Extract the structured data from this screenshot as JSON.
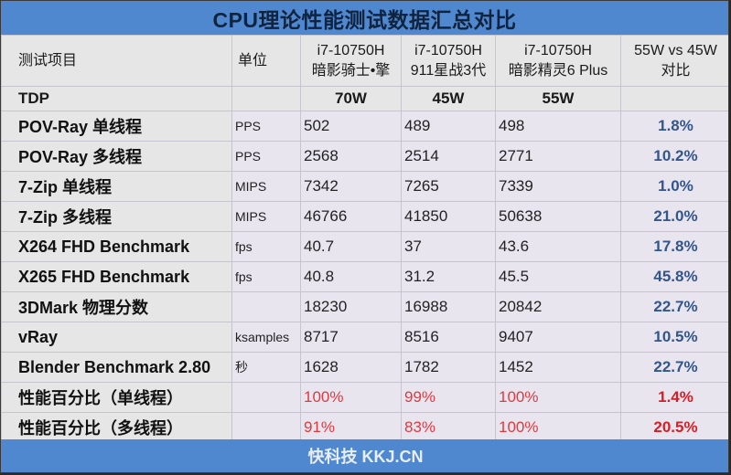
{
  "title": "CPU理论性能测试数据汇总对比",
  "header": {
    "item": "测试项目",
    "unit": "单位",
    "col1": [
      "i7-10750H",
      "暗影骑士•擎"
    ],
    "col2": [
      "i7-10750H",
      "911星战3代"
    ],
    "col3": [
      "i7-10750H",
      "暗影精灵6 Plus"
    ],
    "compare": [
      "55W vs 45W",
      "对比"
    ]
  },
  "tdp": {
    "label": "TDP",
    "values": [
      "70W",
      "45W",
      "55W"
    ]
  },
  "rows": [
    {
      "label": "POV-Ray 单线程",
      "unit": "PPS",
      "v": [
        "502",
        "489",
        "498"
      ],
      "cmp": "1.8%"
    },
    {
      "label": "POV-Ray 多线程",
      "unit": "PPS",
      "v": [
        "2568",
        "2514",
        "2771"
      ],
      "cmp": "10.2%"
    },
    {
      "label": "7-Zip 单线程",
      "unit": "MIPS",
      "v": [
        "7342",
        "7265",
        "7339"
      ],
      "cmp": "1.0%"
    },
    {
      "label": "7-Zip 多线程",
      "unit": "MIPS",
      "v": [
        "46766",
        "41850",
        "50638"
      ],
      "cmp": "21.0%"
    },
    {
      "label": "X264 FHD Benchmark",
      "unit": "fps",
      "v": [
        "40.7",
        "37",
        "43.6"
      ],
      "cmp": "17.8%"
    },
    {
      "label": "X265 FHD Benchmark",
      "unit": "fps",
      "v": [
        "40.8",
        "31.2",
        "45.5"
      ],
      "cmp": "45.8%"
    },
    {
      "label": "3DMark 物理分数",
      "unit": "",
      "v": [
        "18230",
        "16988",
        "20842"
      ],
      "cmp": "22.7%"
    },
    {
      "label": "vRay",
      "unit": "ksamples",
      "v": [
        "8717",
        "8516",
        "9407"
      ],
      "cmp": "10.5%"
    },
    {
      "label": "Blender Benchmark 2.80",
      "unit": "秒",
      "v": [
        "1628",
        "1782",
        "1452"
      ],
      "cmp": "22.7%"
    },
    {
      "label": "性能百分比（单线程）",
      "unit": "",
      "v": [
        "100%",
        "99%",
        "100%"
      ],
      "cmp": "1.4%"
    },
    {
      "label": "性能百分比（多线程）",
      "unit": "",
      "v": [
        "91%",
        "83%",
        "100%"
      ],
      "cmp": "20.5%"
    }
  ],
  "footer": "快科技 KKJ.CN",
  "colors": {
    "bar": "#4f88ce",
    "compare_blue": "#34558a",
    "highlight_red": "#d61e26",
    "percent_red": "#e0393f"
  }
}
